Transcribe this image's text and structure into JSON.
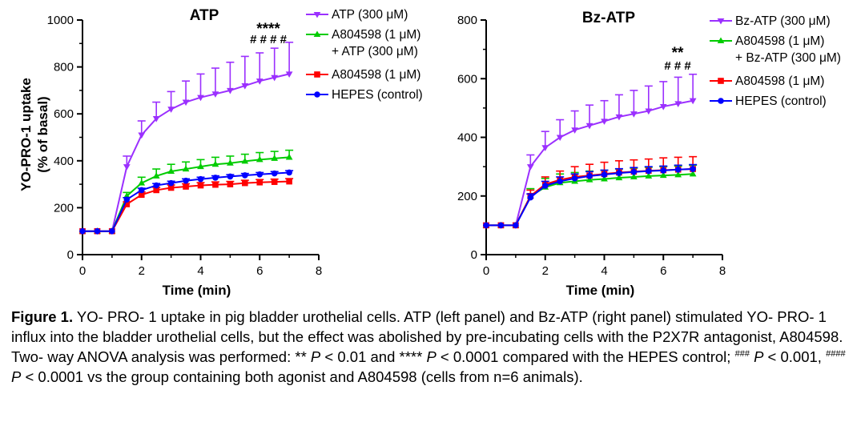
{
  "chart_data": [
    {
      "type": "line",
      "title": "ATP",
      "xlabel": "Time (min)",
      "ylabel_line1": "YO-PRO-1 uptake",
      "ylabel_line2": "(% of basal)",
      "xlim": [
        0,
        8
      ],
      "ylim": [
        0,
        1000
      ],
      "xticks": [
        0,
        2,
        4,
        6,
        8
      ],
      "yticks": [
        0,
        200,
        400,
        600,
        800,
        1000
      ],
      "x": [
        0,
        0.5,
        1,
        1.5,
        2,
        2.5,
        3,
        3.5,
        4,
        4.5,
        5,
        5.5,
        6,
        6.5,
        7
      ],
      "series": [
        {
          "name": "ATP (300 μM)",
          "label_lines": [
            "ATP (300 μM)"
          ],
          "color": "#9b30ff",
          "marker": "triangle-down",
          "values": [
            100,
            100,
            100,
            375,
            510,
            580,
            620,
            650,
            670,
            685,
            700,
            720,
            740,
            755,
            770
          ],
          "errors": [
            0,
            0,
            0,
            45,
            60,
            70,
            75,
            90,
            100,
            110,
            120,
            125,
            120,
            125,
            135
          ]
        },
        {
          "name": "A804598 (1 μM) + ATP (300 μM)",
          "label_lines": [
            "A804598 (1 μM)",
            "+ ATP (300 μM)"
          ],
          "color": "#00cc00",
          "marker": "triangle-up",
          "values": [
            100,
            100,
            100,
            250,
            305,
            335,
            355,
            365,
            375,
            385,
            390,
            398,
            405,
            410,
            415
          ],
          "errors": [
            0,
            0,
            0,
            15,
            25,
            30,
            30,
            30,
            30,
            30,
            30,
            30,
            30,
            30,
            30
          ]
        },
        {
          "name": "A804598 (1 μM)",
          "label_lines": [
            "A804598 (1 μM)"
          ],
          "color": "#ff0000",
          "marker": "square",
          "values": [
            100,
            100,
            100,
            215,
            255,
            275,
            285,
            290,
            295,
            298,
            300,
            305,
            308,
            310,
            312
          ],
          "errors": [
            0,
            0,
            0,
            10,
            12,
            12,
            12,
            12,
            12,
            12,
            12,
            12,
            12,
            12,
            12
          ]
        },
        {
          "name": "HEPES (control)",
          "label_lines": [
            "HEPES (control)"
          ],
          "color": "#0000ff",
          "marker": "circle",
          "values": [
            100,
            100,
            100,
            235,
            275,
            295,
            305,
            315,
            322,
            328,
            333,
            338,
            342,
            346,
            350
          ],
          "errors": [
            0,
            0,
            0,
            8,
            8,
            8,
            8,
            8,
            8,
            8,
            8,
            8,
            8,
            8,
            8
          ]
        }
      ],
      "annotations": [
        "****",
        "# # # #"
      ]
    },
    {
      "type": "line",
      "title": "Bz-ATP",
      "xlabel": "Time (min)",
      "xlim": [
        0,
        8
      ],
      "ylim": [
        0,
        800
      ],
      "xticks": [
        0,
        2,
        4,
        6,
        8
      ],
      "yticks": [
        0,
        200,
        400,
        600,
        800
      ],
      "x": [
        0,
        0.5,
        1,
        1.5,
        2,
        2.5,
        3,
        3.5,
        4,
        4.5,
        5,
        5.5,
        6,
        6.5,
        7
      ],
      "series": [
        {
          "name": "Bz-ATP (300 μM)",
          "label_lines": [
            "Bz-ATP (300 μM)"
          ],
          "color": "#9b30ff",
          "marker": "triangle-down",
          "values": [
            100,
            100,
            100,
            300,
            365,
            400,
            425,
            440,
            455,
            470,
            480,
            490,
            505,
            515,
            525
          ],
          "errors": [
            0,
            0,
            0,
            40,
            55,
            60,
            65,
            70,
            70,
            75,
            80,
            85,
            85,
            90,
            90
          ]
        },
        {
          "name": "A804598 (1 μM) + Bz-ATP (300 μM)",
          "label_lines": [
            "A804598 (1 μM)",
            "+ Bz-ATP (300 μM)"
          ],
          "color": "#00cc00",
          "marker": "triangle-up",
          "values": [
            100,
            100,
            100,
            200,
            230,
            245,
            250,
            255,
            258,
            262,
            265,
            268,
            270,
            272,
            275
          ],
          "errors": [
            0,
            0,
            0,
            25,
            30,
            30,
            30,
            30,
            30,
            30,
            30,
            30,
            30,
            30,
            30
          ]
        },
        {
          "name": "A804598 (1 μM)",
          "label_lines": [
            "A804598 (1 μM)"
          ],
          "color": "#ff0000",
          "marker": "square",
          "values": [
            100,
            100,
            100,
            200,
            240,
            255,
            265,
            270,
            275,
            280,
            283,
            286,
            288,
            290,
            292
          ],
          "errors": [
            0,
            0,
            0,
            20,
            25,
            30,
            35,
            38,
            40,
            40,
            40,
            40,
            42,
            42,
            42
          ]
        },
        {
          "name": "HEPES (control)",
          "label_lines": [
            "HEPES (control)"
          ],
          "color": "#0000ff",
          "marker": "circle",
          "values": [
            100,
            100,
            100,
            195,
            235,
            250,
            260,
            268,
            273,
            278,
            282,
            285,
            287,
            290,
            292
          ],
          "errors": [
            0,
            0,
            0,
            12,
            15,
            15,
            15,
            15,
            15,
            15,
            15,
            15,
            15,
            15,
            15
          ]
        }
      ],
      "annotations": [
        "**",
        "# # #"
      ]
    }
  ],
  "caption": {
    "label": "Figure 1.",
    "text_1": " YO- PRO- 1 uptake in pig bladder urothelial cells. ATP (left panel) and Bz-ATP (right panel) stimulated YO- PRO- 1 influx into the bladder urothelial cells, but the effect was abolished by pre-incubating cells with the P2X7R antagonist, A804598. Two- way ANOVA analysis was performed: ** ",
    "p1": "P",
    "text_2": " < 0.01 and **** ",
    "p2": "P",
    "text_3": " < 0.0001 compared with the HEPES control; ",
    "sup1": "###",
    "text_4": " ",
    "p3": "P",
    "text_5": " < 0.001, ",
    "sup2": "####",
    "text_6": " ",
    "p4": "P",
    "text_7": " < 0.0001 vs the group containing both agonist and A804598 (cells from n=6 animals)."
  }
}
